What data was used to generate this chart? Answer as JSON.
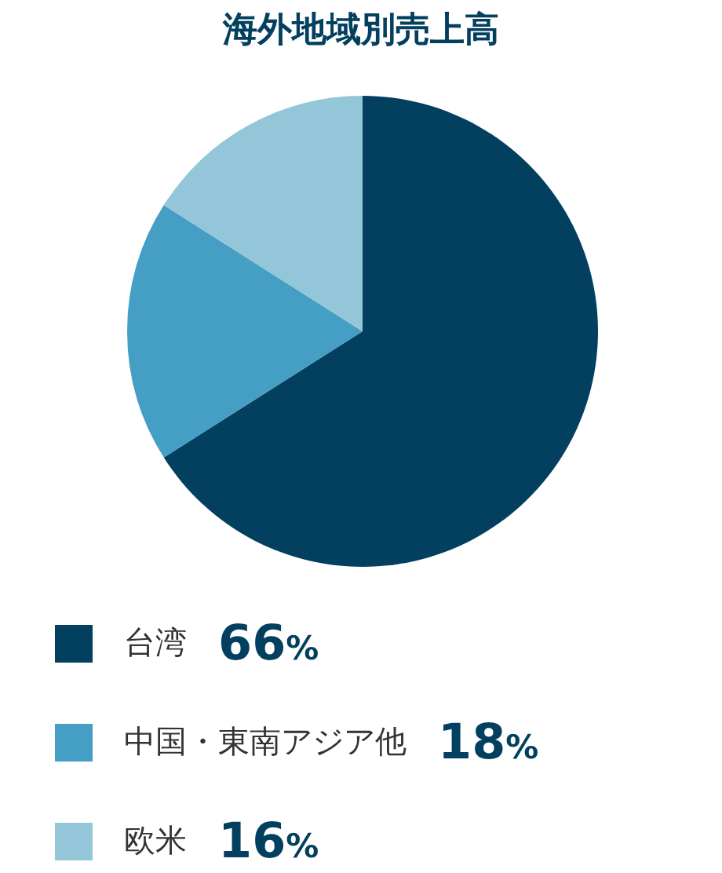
{
  "chart_data": {
    "type": "pie",
    "title": "海外地域別売上高",
    "categories": [
      "台湾",
      "中国・東南アジア他",
      "欧米"
    ],
    "values": [
      66,
      18,
      16
    ],
    "value_labels": [
      "66%",
      "18%",
      "16%"
    ],
    "colors": [
      "#033f5f",
      "#459fc4",
      "#94c6d9"
    ],
    "legend": "bottom"
  }
}
